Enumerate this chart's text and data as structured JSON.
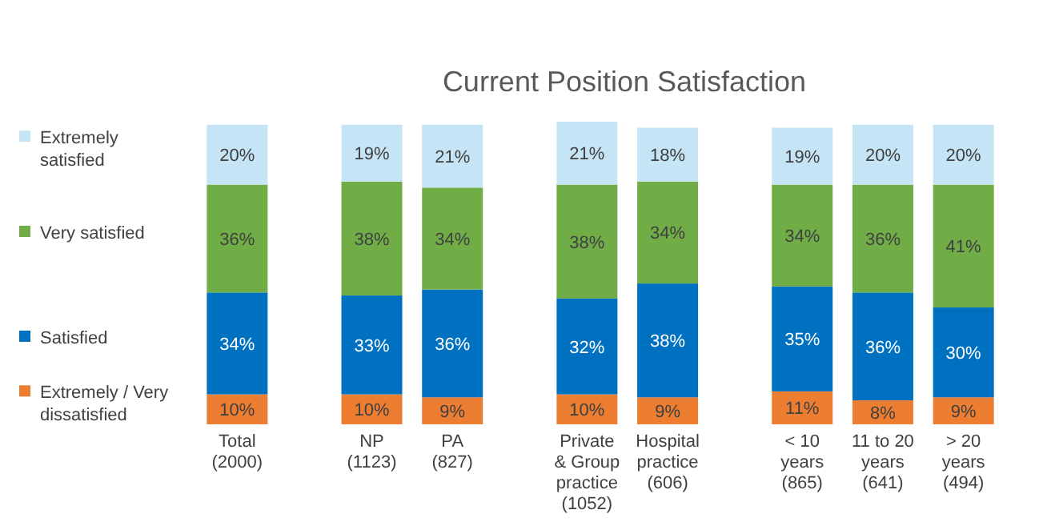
{
  "chart_data": {
    "type": "bar",
    "title": "Current Position Satisfaction",
    "stacked": true,
    "legend": "left",
    "categories": [
      "Total\n(2000)",
      null,
      "NP\n(1123)",
      "PA\n(827)",
      null,
      "Private\n& Group\npractice\n(1052)",
      "Hospital\npractice\n(606)",
      null,
      "< 10\nyears\n(865)",
      "11 to 20\nyears\n(641)",
      "> 20\nyears\n(494)"
    ],
    "series": [
      {
        "name": "Extremely / Very dissatisfied",
        "color": "#ed7d31",
        "values": [
          10,
          null,
          10,
          9,
          null,
          10,
          9,
          null,
          11,
          8,
          9
        ],
        "value_labels": [
          "10%",
          null,
          "10%",
          "9%",
          null,
          "10%",
          "9%",
          null,
          "11%",
          "8%",
          "9%"
        ]
      },
      {
        "name": "Satisfied",
        "color": "#0070c0",
        "values": [
          34,
          null,
          33,
          36,
          null,
          32,
          38,
          null,
          35,
          36,
          30
        ],
        "value_labels": [
          "34%",
          null,
          "33%",
          "36%",
          null,
          "32%",
          "38%",
          null,
          "35%",
          "36%",
          "30%"
        ]
      },
      {
        "name": "Very satisfied",
        "color": "#70ad47",
        "values": [
          36,
          null,
          38,
          34,
          null,
          38,
          34,
          null,
          34,
          36,
          41
        ],
        "value_labels": [
          "36%",
          null,
          "38%",
          "34%",
          null,
          "38%",
          "34%",
          null,
          "34%",
          "36%",
          "41%"
        ]
      },
      {
        "name": "Extremely satisfied",
        "color": "#c5e4f5",
        "values": [
          20,
          null,
          19,
          21,
          null,
          21,
          18,
          null,
          19,
          20,
          20
        ],
        "value_labels": [
          "20%",
          null,
          "19%",
          "21%",
          null,
          "21%",
          "18%",
          null,
          "19%",
          "20%",
          "20%"
        ]
      }
    ]
  }
}
